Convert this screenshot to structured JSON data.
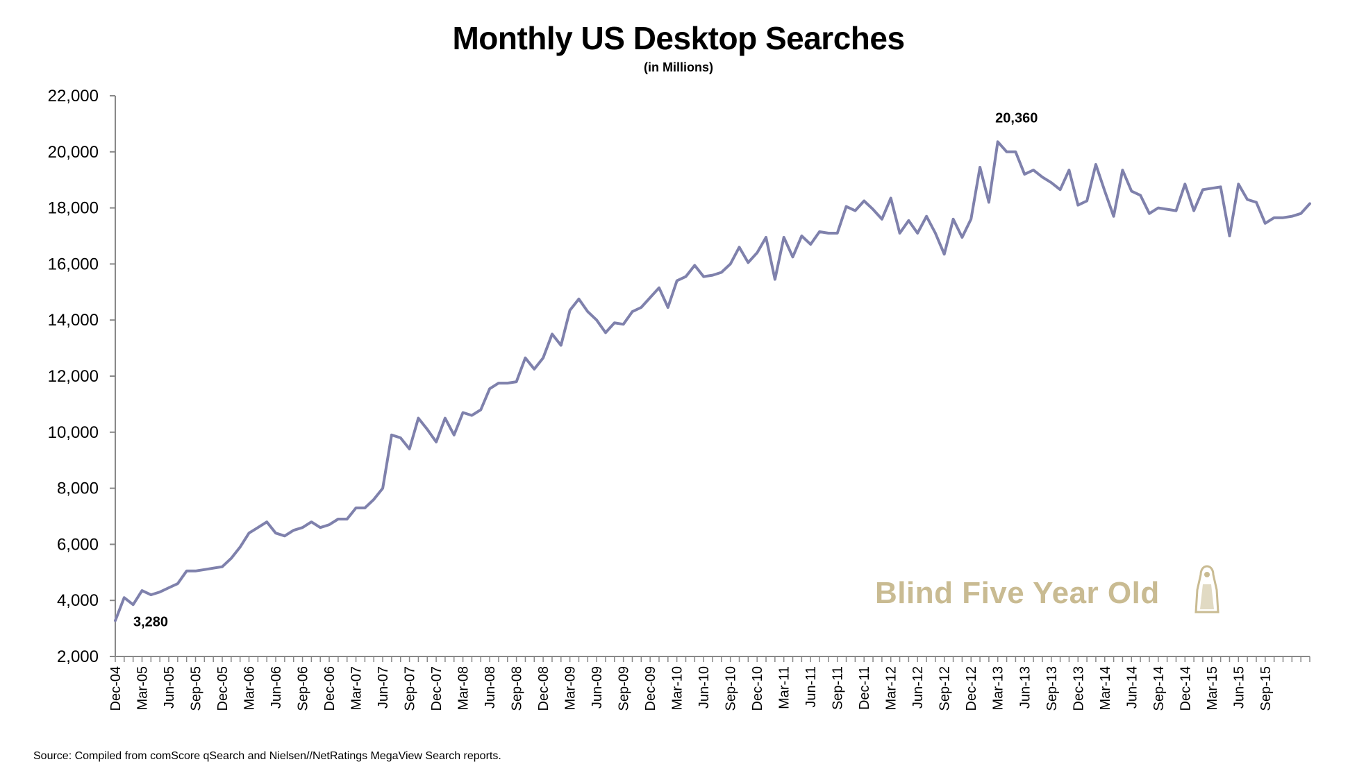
{
  "chart_data": {
    "type": "line",
    "title": "Monthly US Desktop Searches",
    "subtitle": "(in Millions)",
    "xlabel": "",
    "ylabel": "",
    "ylim": [
      2000,
      22000
    ],
    "yticks": [
      "2,000",
      "4,000",
      "6,000",
      "8,000",
      "10,000",
      "12,000",
      "14,000",
      "16,000",
      "18,000",
      "20,000",
      "22,000"
    ],
    "ytick_values": [
      2000,
      4000,
      6000,
      8000,
      10000,
      12000,
      14000,
      16000,
      18000,
      20000,
      22000
    ],
    "grid": false,
    "legend": "none",
    "line_color": "#7f81ac",
    "xtick_labels": [
      "Dec-04",
      "Mar-05",
      "Jun-05",
      "Sep-05",
      "Dec-05",
      "Mar-06",
      "Jun-06",
      "Sep-06",
      "Dec-06",
      "Mar-07",
      "Jun-07",
      "Sep-07",
      "Dec-07",
      "Mar-08",
      "Jun-08",
      "Sep-08",
      "Dec-08",
      "Mar-09",
      "Jun-09",
      "Sep-09",
      "Dec-09",
      "Mar-10",
      "Jun-10",
      "Sep-10",
      "Dec-10",
      "Mar-11",
      "Jun-11",
      "Sep-11",
      "Dec-11",
      "Mar-12",
      "Jun-12",
      "Sep-12",
      "Dec-12",
      "Mar-13",
      "Jun-13",
      "Sep-13",
      "Dec-13",
      "Mar-14",
      "Jun-14",
      "Sep-14",
      "Dec-14",
      "Mar-15",
      "Jun-15",
      "Sep-15"
    ],
    "x_start": "Dec-04",
    "x_end": "Nov-15",
    "series": [
      {
        "values": [
          3280,
          4100,
          3850,
          4350,
          4200,
          4300,
          4450,
          4600,
          5050,
          5050,
          5100,
          5150,
          5200,
          5500,
          5900,
          6400,
          6600,
          6800,
          6400,
          6300,
          6500,
          6600,
          6800,
          6600,
          6700,
          6900,
          6900,
          7300,
          7300,
          7600,
          8000,
          9900,
          9800,
          9400,
          10500,
          10100,
          9650,
          10500,
          9900,
          10700,
          10600,
          10800,
          11550,
          11750,
          11750,
          11800,
          12650,
          12250,
          12650,
          13500,
          13100,
          14350,
          14750,
          14300,
          14000,
          13550,
          13900,
          13850,
          14300,
          14450,
          14800,
          15150,
          14450,
          15400,
          15550,
          15950,
          15550,
          15600,
          15700,
          16000,
          16600,
          16050,
          16400,
          16950,
          15450,
          16950,
          16250,
          17000,
          16700,
          17150,
          17100,
          17100,
          18050,
          17900,
          18250,
          17950,
          17600,
          18350,
          17100,
          17550,
          17100,
          17700,
          17100,
          16350,
          17600,
          16950,
          17600,
          19450,
          18200,
          20360,
          20000,
          20000,
          19200,
          19350,
          19100,
          18900,
          18650,
          19350,
          18100,
          18250,
          19550,
          18600,
          17700,
          19350,
          18600,
          18450,
          17800,
          18000,
          17950,
          17900,
          18850,
          17900,
          18650,
          18700,
          18750,
          17000,
          18850,
          18300,
          18200,
          17450,
          17650,
          17650,
          17700,
          17800,
          18150
        ]
      }
    ],
    "annotations": [
      {
        "label": "3,280",
        "x": "Dec-04",
        "y": 3280
      },
      {
        "label": "20,360",
        "x": "Mar-13",
        "y": 20360
      }
    ]
  },
  "source": "Source: Compiled from comScore qSearch and Nielsen//NetRatings MegaView Search reports.",
  "watermark": "Blind Five Year Old"
}
